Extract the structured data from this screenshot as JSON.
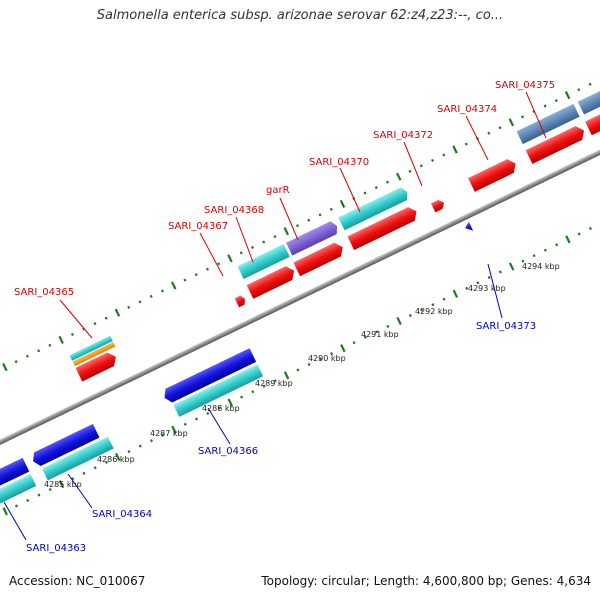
{
  "title": "Salmonella enterica subsp. arizonae serovar 62:z4,z23:--, co...",
  "footer": {
    "accession": "Accession: NC_010067",
    "stats": "Topology: circular; Length: 4,600,800 bp; Genes: 4,634"
  },
  "colors": {
    "cds_forward": "#ff1a1a",
    "cds_reverse": "#1a1ae6",
    "gene_cyan": "#33cccc",
    "gene_orange": "#ff9900",
    "gene_purple": "#7a5ccc",
    "gene_steel": "#4a7ab0",
    "label_red": "#dd0000",
    "label_blue": "#0000cc",
    "backbone": "#8c8c8c",
    "tick_green": "#1f7a1f"
  },
  "kbp_labels": [
    {
      "label": "4285 kbp",
      "kbp": 4285
    },
    {
      "label": "4286 kbp",
      "kbp": 4286
    },
    {
      "label": "4287 kbp",
      "kbp": 4287
    },
    {
      "label": "4288 kbp",
      "kbp": 4288
    },
    {
      "label": "4289 kbp",
      "kbp": 4289
    },
    {
      "label": "4290 kbp",
      "kbp": 4290
    },
    {
      "label": "4291 kbp",
      "kbp": 4291
    },
    {
      "label": "4292 kbp",
      "kbp": 4292
    },
    {
      "label": "4293 kbp",
      "kbp": 4293
    },
    {
      "label": "4294 kbp",
      "kbp": 4294
    }
  ],
  "top_labels": [
    {
      "id": "sari-04365",
      "text": "SARI_04365"
    },
    {
      "id": "sari-04367",
      "text": "SARI_04367"
    },
    {
      "id": "sari-04368",
      "text": "SARI_04368"
    },
    {
      "id": "garr",
      "text": "garR"
    },
    {
      "id": "sari-04370",
      "text": "SARI_04370"
    },
    {
      "id": "sari-04372",
      "text": "SARI_04372"
    },
    {
      "id": "sari-04374",
      "text": "SARI_04374"
    },
    {
      "id": "sari-04375",
      "text": "SARI_04375"
    }
  ],
  "bottom_labels": [
    {
      "id": "sari-04363",
      "text": "SARI_04363"
    },
    {
      "id": "sari-04364",
      "text": "SARI_04364"
    },
    {
      "id": "sari-04366",
      "text": "SARI_04366"
    },
    {
      "id": "sari-04373",
      "text": "SARI_04373"
    }
  ]
}
